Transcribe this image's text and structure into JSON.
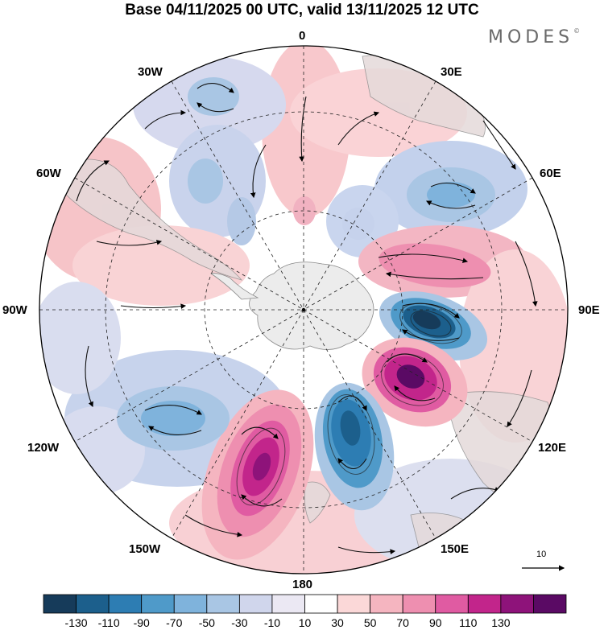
{
  "title": "Base 04/11/2025 00 UTC, valid 13/11/2025 12 UTC",
  "brand": "MODES",
  "brand_mark": "©",
  "longitude_labels": {
    "n0": "0",
    "e30": "30E",
    "e60": "60E",
    "e90": "90E",
    "e120": "120E",
    "e150": "150E",
    "s180": "180",
    "w150": "150W",
    "w120": "120W",
    "w90": "90W",
    "w60": "60W",
    "w30": "30W"
  },
  "reference_vector": {
    "value": "10"
  },
  "colorbar": {
    "ticks": [
      "-130",
      "-110",
      "-90",
      "-70",
      "-50",
      "-30",
      "-10",
      "10",
      "30",
      "50",
      "70",
      "90",
      "110",
      "130"
    ],
    "colors": [
      "#163b5a",
      "#1c5f8c",
      "#2d7db3",
      "#4f9ac9",
      "#7fb3dc",
      "#a9c6e4",
      "#d0d6ec",
      "#ebe8f3",
      "#ffffff",
      "#fbd8d8",
      "#f5b5c0",
      "#ee8fb0",
      "#e05ba2",
      "#c2258b",
      "#8e137a",
      "#5a0a64"
    ]
  },
  "anomaly_centers": [
    {
      "value": -130,
      "fill": "#1f5f8e"
    },
    {
      "value": -130,
      "fill": "#1a5488"
    },
    {
      "value": 130,
      "fill": "#7a1270"
    },
    {
      "value": 110,
      "fill": "#9a1880"
    },
    {
      "value": -70,
      "fill": "#5e92c6"
    },
    {
      "value": -70,
      "fill": "#6b9dcc"
    },
    {
      "value": -50,
      "fill": "#8db1d9"
    },
    {
      "value": 50,
      "fill": "#e77ca8"
    },
    {
      "value": -50,
      "fill": "#93b7dc"
    },
    {
      "value": -30,
      "fill": "#a9c3e0"
    },
    {
      "value": -30,
      "fill": "#a6c0df"
    },
    {
      "value": 30,
      "fill": "#f1b2c1"
    }
  ]
}
